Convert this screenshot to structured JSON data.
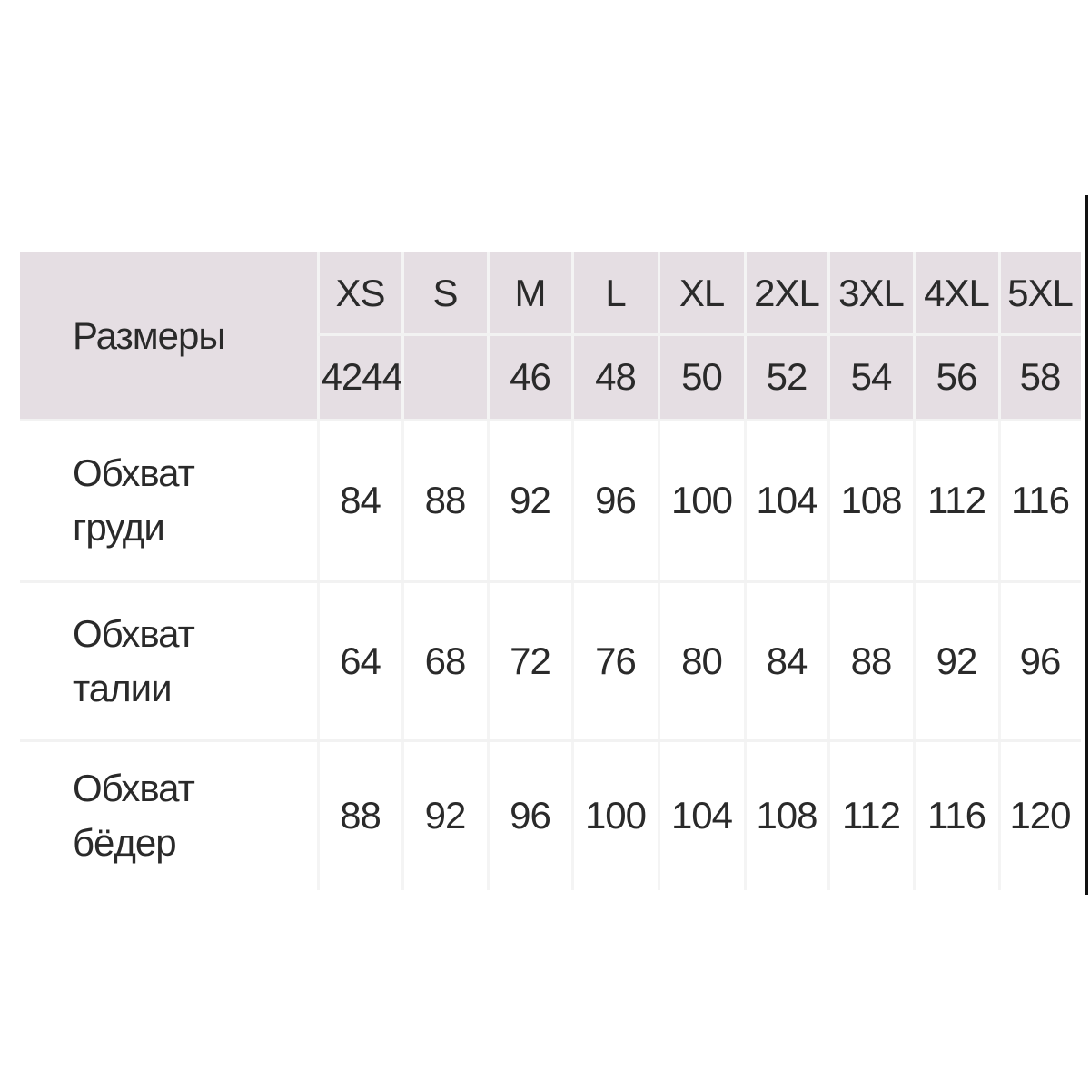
{
  "table": {
    "corner_label": "Размеры",
    "sizes": [
      "XS",
      "S",
      "M",
      "L",
      "XL",
      "2XL",
      "3XL",
      "4XL",
      "5XL"
    ],
    "ru_sizes_first_cell": "4244",
    "ru_sizes": [
      "",
      "44",
      "46",
      "48",
      "50",
      "52",
      "54",
      "56",
      "58"
    ],
    "rows": [
      {
        "label": "Обхват\nгруди",
        "values": [
          "84",
          "88",
          "92",
          "96",
          "100",
          "104",
          "108",
          "112",
          "116"
        ]
      },
      {
        "label": "Обхват\nталии",
        "values": [
          "64",
          "68",
          "72",
          "76",
          "80",
          "84",
          "88",
          "92",
          "96"
        ]
      },
      {
        "label": "Обхват\nбёдер",
        "values": [
          "88",
          "92",
          "96",
          "100",
          "104",
          "108",
          "112",
          "116",
          "120"
        ]
      }
    ],
    "header_color": "#e5dee3"
  }
}
